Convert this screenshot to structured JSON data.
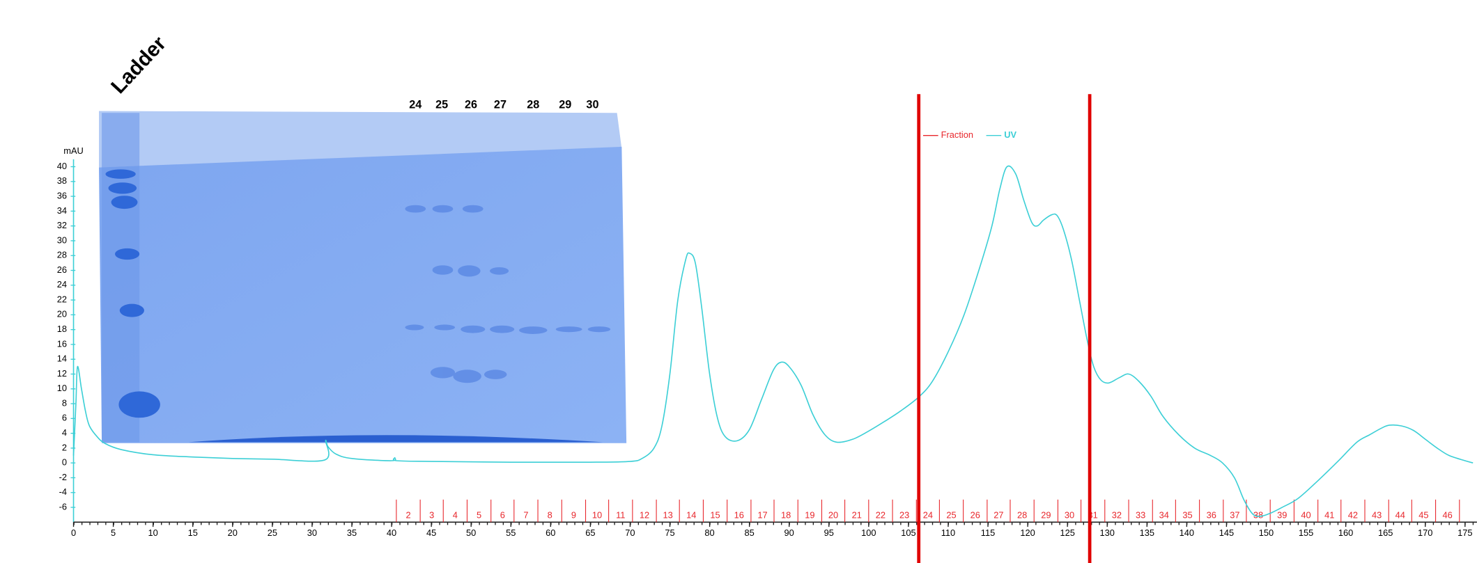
{
  "chart_data": {
    "type": "line",
    "y_label": "mAU",
    "xlim": [
      0,
      176.5
    ],
    "xticks": [
      0,
      5,
      10,
      15,
      20,
      25,
      30,
      35,
      40,
      45,
      50,
      55,
      60,
      65,
      70,
      75,
      80,
      85,
      90,
      95,
      100,
      105,
      110,
      115,
      120,
      125,
      130,
      135,
      140,
      145,
      150,
      155,
      160,
      165,
      170,
      175
    ],
    "ylim": [
      -8,
      41
    ],
    "yticks": [
      -6,
      -4,
      -2,
      0,
      2,
      4,
      6,
      8,
      10,
      12,
      14,
      16,
      18,
      20,
      22,
      24,
      26,
      28,
      30,
      32,
      34,
      36,
      38,
      40
    ],
    "x": [
      0,
      0.3,
      0.5,
      1,
      1.5,
      2,
      3,
      4,
      6,
      10,
      15,
      20,
      25,
      31.6,
      31.7,
      32,
      33,
      35,
      40,
      40.4,
      40.6,
      45,
      55,
      65,
      70,
      71.5,
      73,
      74,
      75,
      76,
      77,
      77.5,
      78.2,
      79,
      80,
      81,
      82,
      83.5,
      85,
      86.5,
      88,
      89,
      90,
      91.5,
      93,
      94.5,
      96,
      98,
      100,
      102,
      104,
      106.3,
      108,
      110,
      112,
      114,
      115.5,
      116.5,
      117.4,
      118.5,
      119.5,
      120.5,
      121.2,
      122,
      123,
      123.7,
      124.5,
      125.5,
      126.5,
      127.5,
      128.3,
      129.2,
      130.2,
      131.5,
      132.7,
      134,
      135.5,
      137,
      139,
      141,
      143,
      144.5,
      146,
      147.2,
      148.3,
      149.3,
      150.5,
      152,
      154,
      156.6,
      159,
      161.4,
      163,
      164.5,
      165.5,
      167,
      168.5,
      170,
      171.5,
      173,
      175,
      176
    ],
    "series": [
      {
        "name": "UV",
        "color": "#3ccfd6",
        "values": [
          1,
          8,
          13,
          10,
          7,
          5,
          3.5,
          2.6,
          1.8,
          1.1,
          0.8,
          0.6,
          0.5,
          0.4,
          3,
          2.2,
          1.2,
          0.6,
          0.3,
          0.7,
          0.3,
          0.2,
          0.1,
          0.1,
          0.2,
          0.6,
          2,
          5,
          12,
          22,
          27.5,
          28.3,
          27,
          21,
          12,
          6,
          3.5,
          3,
          4.5,
          8.5,
          12.5,
          13.6,
          13,
          10.5,
          6.5,
          3.8,
          2.8,
          3.2,
          4.3,
          5.6,
          7,
          8.9,
          11,
          15,
          20,
          26.5,
          32,
          37,
          40,
          39,
          35.5,
          32.5,
          32,
          32.8,
          33.5,
          33.4,
          31.5,
          27.5,
          22,
          16.5,
          13,
          11.2,
          10.8,
          11.5,
          12,
          11,
          9,
          6.3,
          3.8,
          2,
          1,
          0,
          -2,
          -5,
          -6.9,
          -7.2,
          -6.8,
          -6,
          -4.8,
          -2.3,
          0.2,
          2.8,
          3.8,
          4.7,
          5.1,
          5,
          4.4,
          3.2,
          2,
          1,
          0.3,
          0
        ]
      }
    ],
    "fractions": {
      "name": "Fraction",
      "color": "#e8262b",
      "labels": [
        "2",
        "3",
        "4",
        "5",
        "6",
        "7",
        "8",
        "9",
        "10",
        "11",
        "12",
        "13",
        "14",
        "15",
        "16",
        "17",
        "18",
        "19",
        "20",
        "21",
        "22",
        "23",
        "24",
        "25",
        "26",
        "27",
        "28",
        "29",
        "30",
        "31",
        "32",
        "33",
        "34",
        "35",
        "36",
        "37",
        "38",
        "39",
        "40",
        "41",
        "42",
        "43",
        "44",
        "45",
        "46"
      ],
      "edges": [
        40.6,
        43.6,
        46.5,
        49.5,
        52.5,
        55.4,
        58.4,
        61.4,
        64.4,
        67.3,
        70.3,
        73.3,
        76.2,
        79.2,
        82.2,
        85.2,
        88.1,
        91.1,
        94.1,
        97.0,
        100.0,
        103.0,
        106.0,
        108.9,
        111.9,
        114.9,
        117.8,
        120.8,
        123.8,
        126.7,
        129.7,
        132.7,
        135.7,
        138.6,
        141.6,
        144.6,
        147.5,
        150.5,
        153.5,
        156.5,
        159.4,
        162.4,
        165.4,
        168.3,
        171.3,
        174.3
      ]
    },
    "fraction_markers": [
      106.3,
      127.8
    ],
    "fraction_marker_color": "#e00000"
  },
  "gel_image": {
    "title": "Ladder",
    "lanes": [
      "24",
      "25",
      "26",
      "27",
      "28",
      "29",
      "30"
    ]
  }
}
